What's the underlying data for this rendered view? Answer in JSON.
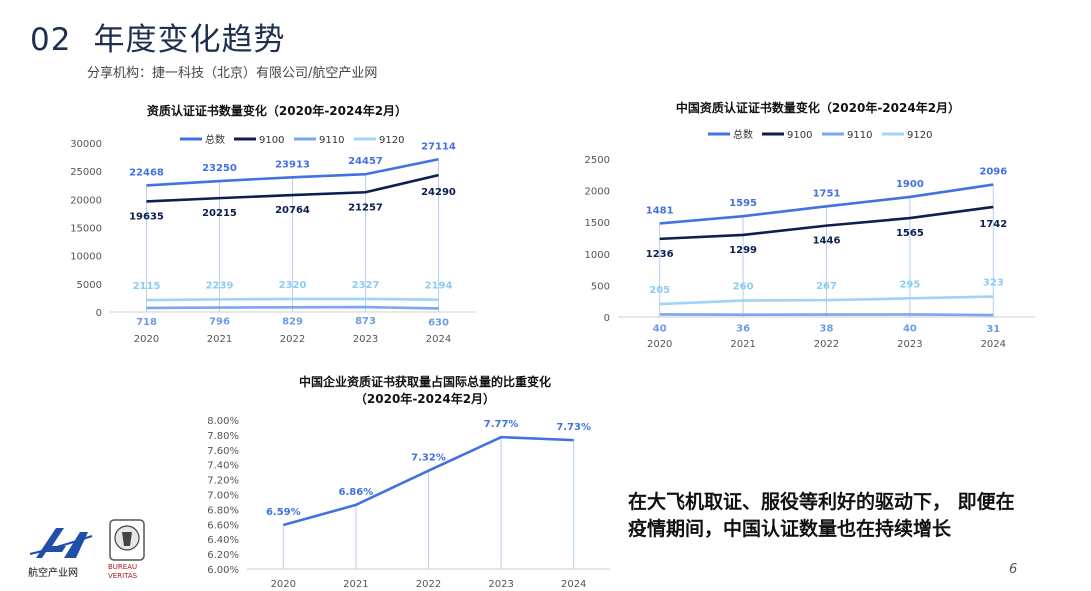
{
  "header": {
    "number": "02",
    "title": "年度变化趋势",
    "source": "分享机构：捷一科技（北京）有限公司/航空产业网"
  },
  "callout": {
    "line1": "在大飞机取证、服役等利好的驱动下， 即便在",
    "line2": "疫情期间，中国认证数量也在持续增长"
  },
  "page_number": "6",
  "logos": {
    "left_text": "航空产业网",
    "right_text_1": "BUREAU",
    "right_text_2": "VERITAS"
  },
  "colors": {
    "total": "#4372e0",
    "s9100": "#0d1f4f",
    "s9110": "#7ea6ee",
    "s9120": "#9fd5f4",
    "label_total": "#4372e0",
    "label_9110": "#6f9ae8",
    "label_9120": "#8ccdf2"
  },
  "chart_data": [
    {
      "type": "line",
      "title": "资质认证证书数量变化（2020年-2024年2月）",
      "categories": [
        "2020",
        "2021",
        "2022",
        "2023",
        "2024"
      ],
      "ylim": [
        0,
        30000
      ],
      "yticks": [
        "0",
        "5000",
        "10000",
        "15000",
        "20000",
        "25000",
        "30000"
      ],
      "legend_position": "top",
      "grid": false,
      "series": [
        {
          "name": "总数",
          "values": [
            22468,
            23250,
            23913,
            24457,
            27114
          ],
          "labels": [
            "22468",
            "23250",
            "23913",
            "24457",
            "27114"
          ]
        },
        {
          "name": "9100",
          "values": [
            19635,
            20215,
            20764,
            21257,
            24290
          ],
          "labels": [
            "19635",
            "20215",
            "20764",
            "21257",
            "24290"
          ]
        },
        {
          "name": "9110",
          "values": [
            718,
            796,
            829,
            873,
            630
          ],
          "labels": [
            "718",
            "796",
            "829",
            "873",
            "630"
          ]
        },
        {
          "name": "9120",
          "values": [
            2115,
            2239,
            2320,
            2327,
            2194
          ],
          "labels": [
            "2115",
            "2239",
            "2320",
            "2327",
            "2194"
          ]
        }
      ]
    },
    {
      "type": "line",
      "title": "中国资质认证证书数量变化（2020年-2024年2月）",
      "categories": [
        "2020",
        "2021",
        "2022",
        "2023",
        "2024"
      ],
      "ylim": [
        0,
        2500
      ],
      "yticks": [
        "0",
        "500",
        "1000",
        "1500",
        "2000",
        "2500"
      ],
      "legend_position": "top",
      "grid": false,
      "series": [
        {
          "name": "总数",
          "values": [
            1481,
            1595,
            1751,
            1900,
            2096
          ],
          "labels": [
            "1481",
            "1595",
            "1751",
            "1900",
            "2096"
          ]
        },
        {
          "name": "9100",
          "values": [
            1236,
            1299,
            1446,
            1565,
            1742
          ],
          "labels": [
            "1236",
            "1299",
            "1446",
            "1565",
            "1742"
          ]
        },
        {
          "name": "9110",
          "values": [
            40,
            36,
            38,
            40,
            31
          ],
          "labels": [
            "40",
            "36",
            "38",
            "40",
            "31"
          ]
        },
        {
          "name": "9120",
          "values": [
            205,
            260,
            267,
            295,
            323
          ],
          "labels": [
            "205",
            "260",
            "267",
            "295",
            "323"
          ]
        }
      ]
    },
    {
      "type": "line",
      "title_line1": "中国企业资质证书获取量占国际总量的比重变化",
      "title_line2": "（2020年-2024年2月）",
      "categories": [
        "2020",
        "2021",
        "2022",
        "2023",
        "2024"
      ],
      "ylim": [
        6.0,
        8.0
      ],
      "yticks": [
        "6.00%",
        "6.20%",
        "6.40%",
        "6.60%",
        "6.80%",
        "7.00%",
        "7.20%",
        "7.40%",
        "7.60%",
        "7.80%",
        "8.00%"
      ],
      "grid": false,
      "series": [
        {
          "values": [
            6.59,
            6.86,
            7.32,
            7.77,
            7.73
          ],
          "labels": [
            "6.59%",
            "6.86%",
            "7.32%",
            "7.77%",
            "7.73%"
          ]
        }
      ]
    }
  ]
}
